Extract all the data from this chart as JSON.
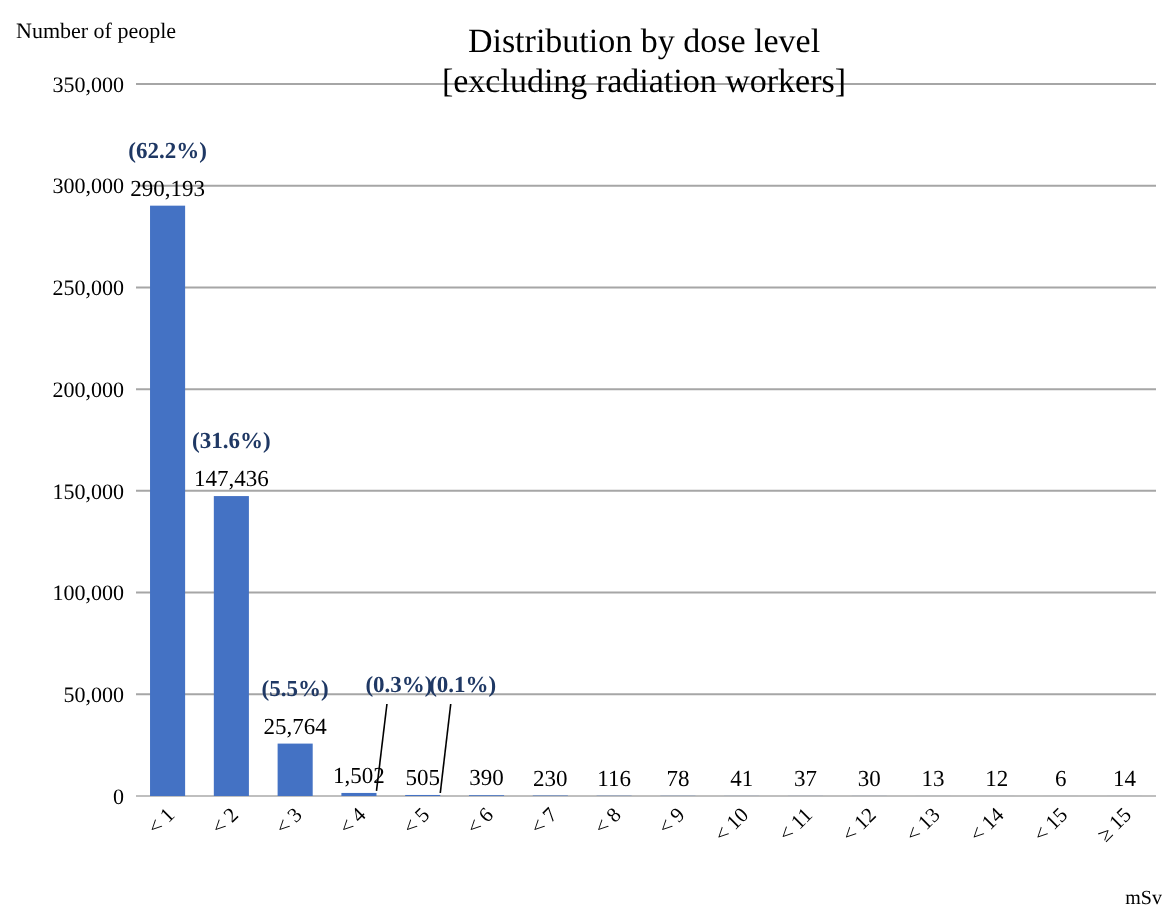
{
  "chart_data": {
    "type": "bar",
    "title": "Distribution by dose level\n[excluding radiation workers]",
    "ylabel": "Number of people",
    "xlabel": "mSv",
    "categories": [
      "< 1",
      "< 2",
      "< 3",
      "< 4",
      "< 5",
      "< 6",
      "< 7",
      "< 8",
      "< 9",
      "< 10",
      "< 11",
      "< 12",
      "< 13",
      "< 14",
      "< 15",
      "≥ 15"
    ],
    "values": [
      290193,
      147436,
      25764,
      1502,
      505,
      390,
      230,
      116,
      78,
      41,
      37,
      30,
      13,
      12,
      6,
      14
    ],
    "value_labels": [
      "290,193",
      "147,436",
      "25,764",
      "1,502",
      "505",
      "390",
      "230",
      "116",
      "78",
      "41",
      "37",
      "30",
      "13",
      "12",
      "6",
      "14"
    ],
    "color": "#4472c4",
    "ylim": [
      0,
      350000
    ],
    "yticks": [
      {
        "value": 0,
        "label": "0"
      },
      {
        "value": 50000,
        "label": "50,000"
      },
      {
        "value": 100000,
        "label": "100,000"
      },
      {
        "value": 150000,
        "label": "150,000"
      },
      {
        "value": 200000,
        "label": "200,000"
      },
      {
        "value": 250000,
        "label": "250,000"
      },
      {
        "value": 300000,
        "label": "300,000"
      },
      {
        "value": 350000,
        "label": "350,000"
      }
    ],
    "grid": "y",
    "annotations": [
      {
        "text": "(62.2%)",
        "x": "< 1",
        "y": 290193
      },
      {
        "text": "(31.6%)",
        "x": "< 2",
        "y": 147436
      },
      {
        "text": "(5.5%)",
        "x": "< 3",
        "y": 25764
      },
      {
        "text": "(0.3%)",
        "x": "< 4",
        "y": 1502
      },
      {
        "text": "(0.1%)",
        "x": "< 5",
        "y": 505
      }
    ]
  }
}
